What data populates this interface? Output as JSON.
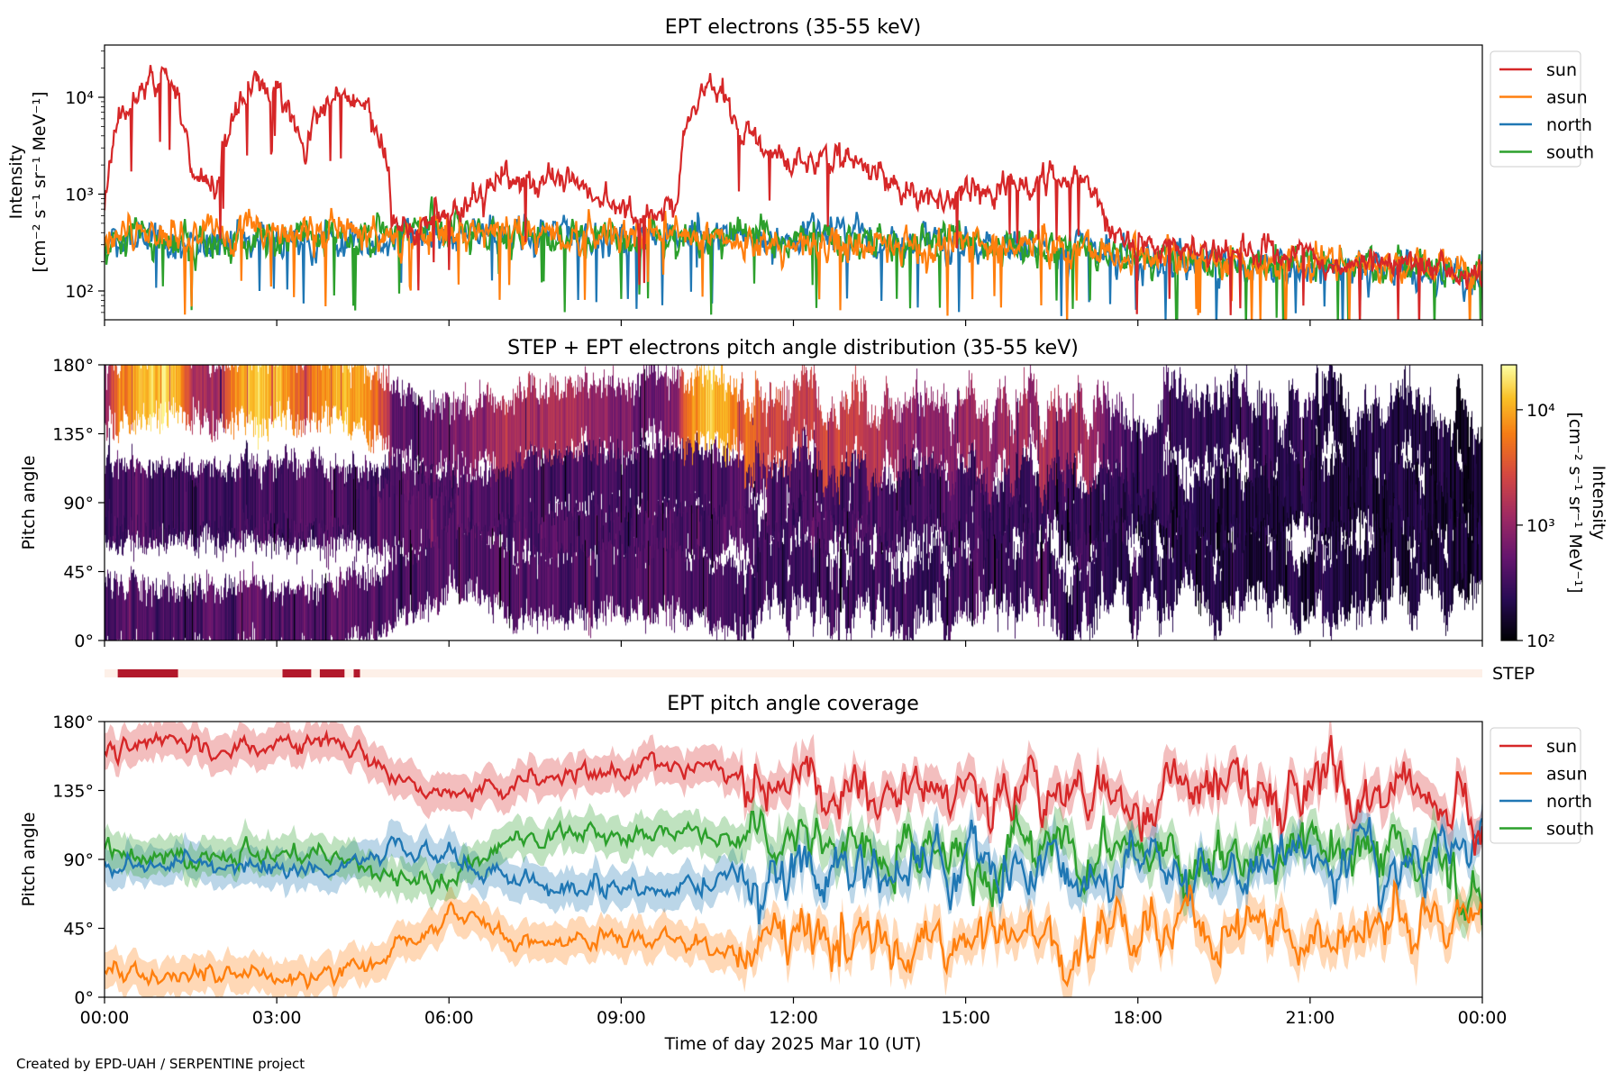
{
  "footer": "Created by EPD-UAH / SERPENTINE project",
  "colors": {
    "sun": "#d62728",
    "asun": "#ff7f0e",
    "north": "#1f77b4",
    "south": "#2ca02c",
    "step_on": "#b2182b",
    "step_off": "#fdf0e8"
  },
  "chart_data": [
    {
      "type": "line",
      "title": "EPT electrons (35-55 keV)",
      "ylabel": "Intensity",
      "ylabel_units": "[cm⁻² s⁻¹ sr⁻¹ MeV⁻¹]",
      "yscale": "log",
      "ylim": [
        50,
        35000
      ],
      "yticks": [
        {
          "value": 100,
          "label": "10²"
        },
        {
          "value": 1000,
          "label": "10³"
        },
        {
          "value": 10000,
          "label": "10⁴"
        }
      ],
      "x_hours_step": 0.5,
      "legend": [
        "sun",
        "asun",
        "north",
        "south"
      ],
      "legend_position": "outside-right-top",
      "series": [
        {
          "name": "sun",
          "values": [
            800,
            10000,
            18000,
            1500,
            1200,
            12000,
            12000,
            3000,
            10000,
            8000,
            500,
            500,
            600,
            800,
            1500,
            1200,
            1500,
            1000,
            600,
            600,
            800,
            15000,
            5000,
            3000,
            2000,
            2500,
            2500,
            1500,
            1000,
            800,
            1200,
            1000,
            1500,
            1500,
            1500,
            400,
            300,
            250,
            250,
            250,
            250,
            250,
            250,
            200,
            200,
            200,
            180,
            150,
            150
          ]
        },
        {
          "name": "asun",
          "values": [
            350,
            400,
            400,
            380,
            400,
            420,
            400,
            400,
            420,
            400,
            380,
            350,
            380,
            380,
            380,
            380,
            380,
            380,
            360,
            360,
            360,
            360,
            340,
            340,
            320,
            320,
            320,
            300,
            300,
            300,
            300,
            300,
            300,
            280,
            280,
            240,
            220,
            200,
            200,
            200,
            200,
            190,
            190,
            180,
            180,
            170,
            170,
            160,
            160
          ]
        },
        {
          "name": "north",
          "values": [
            300,
            320,
            300,
            300,
            320,
            330,
            330,
            330,
            340,
            350,
            400,
            420,
            420,
            400,
            380,
            380,
            380,
            360,
            360,
            360,
            360,
            360,
            340,
            340,
            340,
            330,
            330,
            320,
            320,
            300,
            300,
            290,
            290,
            280,
            280,
            230,
            210,
            200,
            200,
            190,
            190,
            180,
            180,
            170,
            170,
            160,
            160,
            150,
            150
          ]
        },
        {
          "name": "south",
          "values": [
            320,
            340,
            330,
            320,
            330,
            340,
            350,
            350,
            360,
            360,
            380,
            400,
            400,
            390,
            380,
            380,
            380,
            370,
            360,
            360,
            360,
            360,
            350,
            360,
            360,
            350,
            340,
            330,
            320,
            310,
            300,
            300,
            290,
            290,
            280,
            240,
            220,
            210,
            200,
            200,
            200,
            190,
            190,
            180,
            180,
            170,
            170,
            160,
            160
          ]
        }
      ]
    },
    {
      "type": "heatmap",
      "title": "STEP + EPT electrons pitch angle distribution (35-55 keV)",
      "ylabel": "Pitch angle",
      "ylim": [
        0,
        180
      ],
      "yticks": [
        "0°",
        "45°",
        "90°",
        "135°",
        "180°"
      ],
      "colorbar": {
        "label": "Intensity",
        "units": "[cm⁻² s⁻¹ sr⁻¹ MeV⁻¹]",
        "scale": "log",
        "range": [
          100,
          24500
        ],
        "ticks": [
          {
            "value": 100,
            "label": "10²"
          },
          {
            "value": 1000,
            "label": "10³"
          },
          {
            "value": 10000,
            "label": "10⁴"
          }
        ],
        "colormap": "inferno"
      }
    },
    {
      "type": "bar",
      "label": "STEP",
      "active_intervals_hours": [
        [
          0.23,
          1.28
        ],
        [
          3.1,
          3.6
        ],
        [
          3.75,
          4.18
        ],
        [
          4.34,
          4.45
        ]
      ]
    },
    {
      "type": "line",
      "title": "EPT pitch angle coverage",
      "ylabel": "Pitch angle",
      "xlabel": "Time of day 2025 Mar 10 (UT)",
      "ylim": [
        0,
        180
      ],
      "yticks": [
        {
          "value": 0,
          "label": "0°"
        },
        {
          "value": 45,
          "label": "45°"
        },
        {
          "value": 90,
          "label": "90°"
        },
        {
          "value": 135,
          "label": "135°"
        },
        {
          "value": 180,
          "label": "180°"
        }
      ],
      "xticks": [
        "00:00",
        "03:00",
        "06:00",
        "09:00",
        "12:00",
        "15:00",
        "18:00",
        "21:00",
        "00:00"
      ],
      "x_hours_step": 1,
      "legend": [
        "sun",
        "asun",
        "north",
        "south"
      ],
      "legend_position": "outside-right-top",
      "band_halfwidth_deg": 12,
      "series": [
        {
          "name": "sun",
          "values": [
            160,
            168,
            165,
            162,
            168,
            150,
            130,
            140,
            150,
            150,
            150,
            150,
            140,
            138,
            135,
            135,
            140,
            135,
            130,
            130,
            135,
            140,
            135,
            130,
            120
          ]
        },
        {
          "name": "asun",
          "values": [
            20,
            12,
            12,
            15,
            12,
            30,
            55,
            40,
            35,
            38,
            35,
            30,
            35,
            40,
            38,
            40,
            38,
            35,
            40,
            40,
            38,
            42,
            40,
            45,
            60
          ]
        },
        {
          "name": "north",
          "values": [
            85,
            88,
            85,
            85,
            88,
            98,
            100,
            75,
            70,
            72,
            72,
            80,
            85,
            85,
            85,
            85,
            82,
            85,
            88,
            85,
            85,
            85,
            85,
            88,
            95
          ]
        },
        {
          "name": "south",
          "values": [
            95,
            92,
            95,
            95,
            90,
            80,
            75,
            105,
            108,
            105,
            110,
            100,
            95,
            95,
            95,
            95,
            98,
            95,
            92,
            95,
            95,
            95,
            92,
            90,
            80
          ]
        }
      ]
    }
  ]
}
